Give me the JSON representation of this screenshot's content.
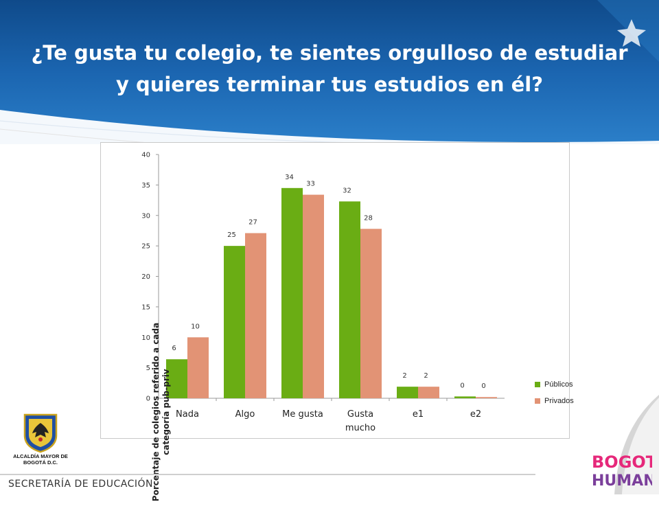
{
  "slide": {
    "title": "¿Te gusta tu colegio, te sientes orgulloso de estudiar y quieres terminar tus estudios en él?",
    "footer": "SECRETARÍA DE EDUCACIÓN",
    "crest_text": "ALCALDÍA MAYOR DE BOGOTÁ D.C.",
    "brand_top": "BOGOTÁ",
    "brand_bottom": "HUMANA",
    "colors": {
      "header": "#1b65b0",
      "brand_primary": "#e6287a"
    }
  },
  "chart_data": {
    "type": "bar",
    "title": "",
    "xlabel": "",
    "ylabel": "Porcentaje de colegios referido a cada categoría pub-priv",
    "ylim": [
      0,
      40
    ],
    "yticks": [
      0,
      5,
      10,
      15,
      20,
      25,
      30,
      35,
      40
    ],
    "grid": false,
    "legend": "right",
    "categories": [
      "Nada",
      "Algo",
      "Me gusta",
      "Gusta mucho",
      "e1",
      "e2"
    ],
    "series": [
      {
        "name": "Públicos",
        "color": "#6aad14",
        "values": [
          6.4,
          25,
          34.5,
          32.3,
          1.9,
          0.3
        ],
        "labels": [
          "6",
          "25",
          "34",
          "32",
          "2",
          "0"
        ]
      },
      {
        "name": "Privados",
        "color": "#e29375",
        "values": [
          10,
          27.1,
          33.4,
          27.8,
          1.9,
          0.2
        ],
        "labels": [
          "10",
          "27",
          "33",
          "28",
          "2",
          "0"
        ]
      }
    ]
  }
}
